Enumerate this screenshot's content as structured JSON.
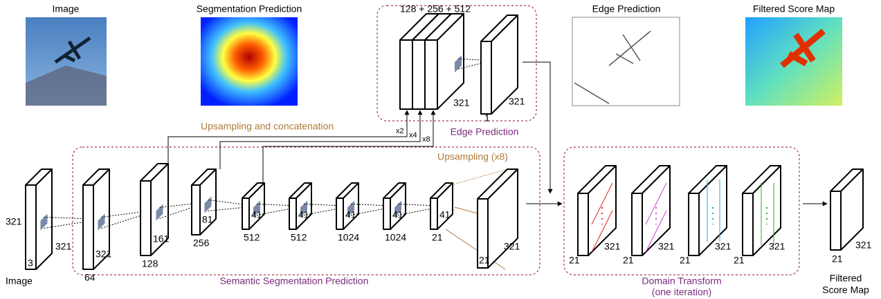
{
  "top_images": [
    {
      "label": "Image"
    },
    {
      "label": "Segmentation Prediction"
    },
    {
      "label": "Edge Prediction"
    },
    {
      "label": "Filtered Score Map"
    }
  ],
  "edge_branch": {
    "title": "Edge Prediction",
    "channels": "128 + 256 + 512",
    "size": "321",
    "out_channels": "1",
    "out_size": "321",
    "scales": [
      "x2",
      "x4",
      "x8"
    ],
    "connector_label": "Upsampling and concatenation"
  },
  "segmentation": {
    "title": "Semantic Segmentation Prediction",
    "input": {
      "height": "321",
      "channels": "3",
      "size": "321",
      "caption": "Image"
    },
    "layers": [
      {
        "channels": "64",
        "size": "321"
      },
      {
        "channels": "128",
        "size": "161"
      },
      {
        "channels": "256",
        "size": "81"
      },
      {
        "channels": "512",
        "size": "41"
      },
      {
        "channels": "512",
        "size": "41"
      },
      {
        "channels": "1024",
        "size": "41"
      },
      {
        "channels": "1024",
        "size": "41"
      },
      {
        "channels": "21",
        "size": "41"
      }
    ],
    "upsampling": "Upsampling (x8)",
    "output": {
      "channels": "21",
      "size": "321"
    }
  },
  "domain_transform": {
    "title": "Domain Transform",
    "subtitle": "(one iteration)",
    "blocks": [
      {
        "channels": "21",
        "size": "321"
      },
      {
        "channels": "21",
        "size": "321"
      },
      {
        "channels": "21",
        "size": "321"
      },
      {
        "channels": "21",
        "size": "321"
      }
    ]
  },
  "output": {
    "channels": "21",
    "size": "321",
    "caption": [
      "Filtered",
      "Score Map"
    ]
  }
}
